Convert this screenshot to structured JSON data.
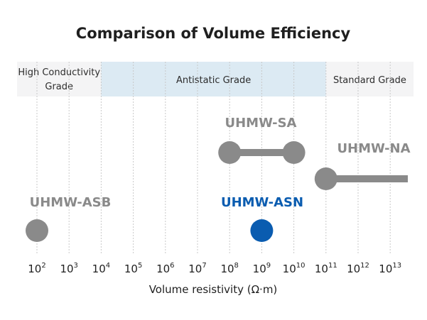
{
  "chart_data": {
    "type": "scatter",
    "title": "Comparison of Volume Efficiency",
    "xlabel": "Volume resistivity (Ω·m)",
    "x_scale": "log10",
    "x_ticks": [
      {
        "value": 100,
        "base": "10",
        "exp": "2"
      },
      {
        "value": 1000,
        "base": "10",
        "exp": "3"
      },
      {
        "value": 10000,
        "base": "10",
        "exp": "4"
      },
      {
        "value": 100000,
        "base": "10",
        "exp": "5"
      },
      {
        "value": 1000000,
        "base": "10",
        "exp": "6"
      },
      {
        "value": 10000000,
        "base": "10",
        "exp": "7"
      },
      {
        "value": 100000000,
        "base": "10",
        "exp": "8"
      },
      {
        "value": 1000000000,
        "base": "10",
        "exp": "9"
      },
      {
        "value": 10000000000,
        "base": "10",
        "exp": "10"
      },
      {
        "value": 100000000000,
        "base": "10",
        "exp": "11"
      },
      {
        "value": 1000000000000,
        "base": "10",
        "exp": "12"
      },
      {
        "value": 10000000000000,
        "base": "10",
        "exp": "13"
      }
    ],
    "bands": [
      {
        "label_lines": [
          "High Conductivity",
          "Grade"
        ],
        "from": 10,
        "to": 10000,
        "color": "#f4f4f5"
      },
      {
        "label_lines": [
          "Antistatic Grade"
        ],
        "from": 10000,
        "to": 100000000000,
        "color": "#dceaf3"
      },
      {
        "label_lines": [
          "Standard Grade"
        ],
        "from": 100000000000,
        "to": 100000000000000,
        "color": "#f4f4f5"
      }
    ],
    "series": [
      {
        "name": "UHMW-SA",
        "from": 100000000,
        "to": 10000000000,
        "open_ended": false,
        "color": "#8a8a8a",
        "row": 1
      },
      {
        "name": "UHMW-NA",
        "from": 100000000000,
        "to": null,
        "open_ended": true,
        "color": "#8a8a8a",
        "row": 2
      },
      {
        "name": "UHMW-ASB",
        "from": 100,
        "to": 100,
        "open_ended": false,
        "color": "#8a8a8a",
        "row": 3
      },
      {
        "name": "UHMW-ASN",
        "from": 1000000000,
        "to": 1000000000,
        "open_ended": false,
        "color": "#0a5cb0",
        "row": 3
      }
    ],
    "grid": true,
    "grid_style": "vertical-dotted"
  }
}
